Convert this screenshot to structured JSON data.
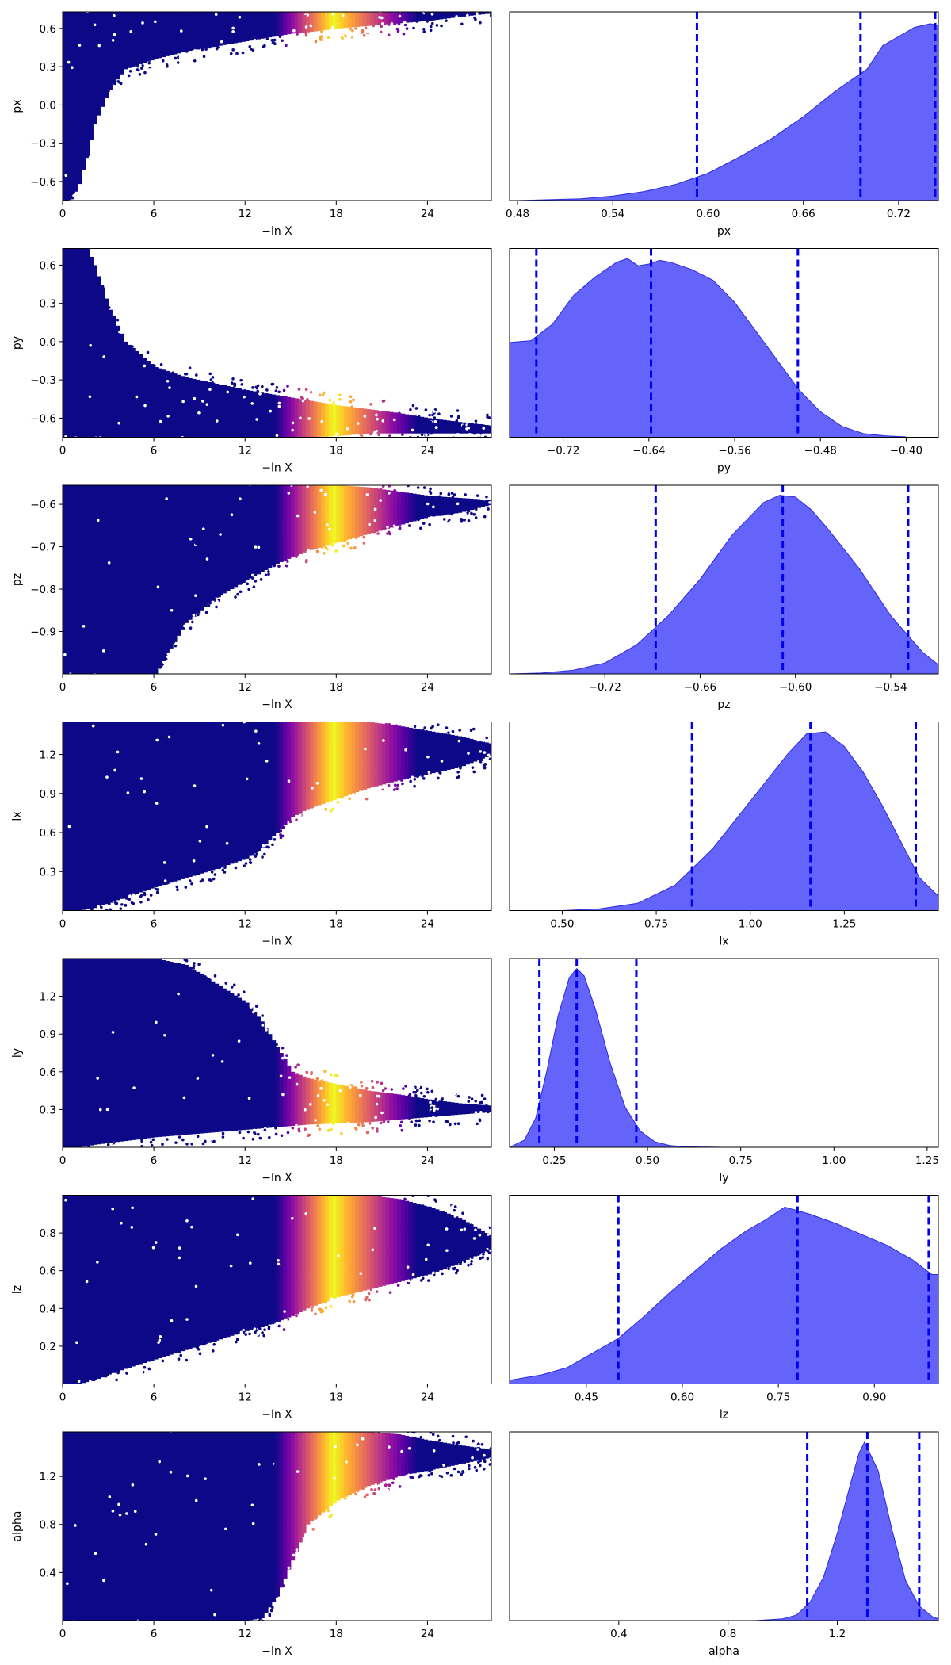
{
  "chart_data": [
    {
      "type": "scatter",
      "param": "px",
      "xlabel": "−ln X",
      "ylabel": "px",
      "xlim": [
        0,
        28.2
      ],
      "ylim": [
        -0.75,
        0.73
      ],
      "xticks": [
        "0",
        "6",
        "12",
        "18",
        "24"
      ],
      "xtick_values": [
        0,
        6,
        12,
        18,
        24
      ],
      "yticks": [
        "0.6",
        "0.3",
        "0.0",
        "−0.3",
        "−0.6"
      ],
      "ytick_values": [
        0.6,
        0.3,
        0.0,
        -0.3,
        -0.6
      ],
      "envelope_x": [
        0,
        0.5,
        1,
        1.5,
        2,
        3,
        4,
        6,
        8,
        10,
        12,
        14,
        15,
        16,
        18,
        20,
        22,
        24,
        26,
        28.2
      ],
      "envelope_lower": [
        -0.75,
        -0.74,
        -0.62,
        -0.4,
        -0.15,
        0.12,
        0.28,
        0.36,
        0.42,
        0.46,
        0.5,
        0.54,
        0.56,
        0.57,
        0.6,
        0.62,
        0.64,
        0.66,
        0.69,
        0.72
      ],
      "envelope_upper": [
        0.73,
        0.73,
        0.73,
        0.73,
        0.73,
        0.73,
        0.73,
        0.73,
        0.73,
        0.73,
        0.73,
        0.73,
        0.73,
        0.73,
        0.73,
        0.73,
        0.73,
        0.73,
        0.73,
        0.73
      ],
      "color_peak": 17.8
    },
    {
      "type": "area",
      "param": "px",
      "xlabel": "px",
      "xlim": [
        0.475,
        0.745
      ],
      "xticks": [
        "0.48",
        "0.54",
        "0.60",
        "0.66",
        "0.72"
      ],
      "xtick_values": [
        0.48,
        0.54,
        0.6,
        0.66,
        0.72
      ],
      "x": [
        0.48,
        0.5,
        0.52,
        0.54,
        0.56,
        0.58,
        0.6,
        0.62,
        0.64,
        0.66,
        0.68,
        0.69,
        0.7,
        0.71,
        0.72,
        0.73,
        0.74,
        0.745
      ],
      "density": [
        0.0,
        0.005,
        0.01,
        0.025,
        0.05,
        0.09,
        0.15,
        0.24,
        0.34,
        0.46,
        0.6,
        0.66,
        0.72,
        0.85,
        0.9,
        0.95,
        0.97,
        0.96
      ],
      "quantiles": [
        0.593,
        0.696,
        0.743
      ]
    },
    {
      "type": "scatter",
      "param": "py",
      "xlabel": "−ln X",
      "ylabel": "py",
      "xlim": [
        0,
        28.2
      ],
      "ylim": [
        -0.75,
        0.73
      ],
      "xticks": [
        "0",
        "6",
        "12",
        "18",
        "24"
      ],
      "xtick_values": [
        0,
        6,
        12,
        18,
        24
      ],
      "yticks": [
        "0.6",
        "0.3",
        "0.0",
        "−0.3",
        "−0.6"
      ],
      "ytick_values": [
        0.6,
        0.3,
        0.0,
        -0.3,
        -0.6
      ],
      "envelope_x": [
        0,
        0.5,
        1,
        1.5,
        2,
        3,
        4,
        6,
        8,
        10,
        12,
        14,
        16,
        18,
        20,
        22,
        24,
        26,
        28.2
      ],
      "envelope_lower": [
        -0.75,
        -0.75,
        -0.75,
        -0.75,
        -0.75,
        -0.75,
        -0.75,
        -0.75,
        -0.75,
        -0.75,
        -0.75,
        -0.75,
        -0.75,
        -0.74,
        -0.72,
        -0.72,
        -0.72,
        -0.72,
        -0.72
      ],
      "envelope_upper": [
        0.73,
        0.73,
        0.73,
        0.73,
        0.6,
        0.25,
        0.0,
        -0.2,
        -0.28,
        -0.33,
        -0.38,
        -0.42,
        -0.46,
        -0.5,
        -0.53,
        -0.56,
        -0.6,
        -0.63,
        -0.66
      ],
      "color_peak": 17.8
    },
    {
      "type": "area",
      "param": "py",
      "xlabel": "py",
      "xlim": [
        -0.77,
        -0.37
      ],
      "xticks": [
        "−0.72",
        "−0.64",
        "−0.56",
        "−0.48",
        "−0.40"
      ],
      "xtick_values": [
        -0.72,
        -0.64,
        -0.56,
        -0.48,
        -0.4
      ],
      "x": [
        -0.77,
        -0.75,
        -0.73,
        -0.71,
        -0.69,
        -0.67,
        -0.66,
        -0.65,
        -0.64,
        -0.63,
        -0.62,
        -0.6,
        -0.58,
        -0.56,
        -0.54,
        -0.52,
        -0.5,
        -0.48,
        -0.46,
        -0.44,
        -0.42,
        -0.4,
        -0.37
      ],
      "density": [
        0.52,
        0.53,
        0.62,
        0.78,
        0.88,
        0.96,
        0.98,
        0.94,
        0.95,
        0.97,
        0.96,
        0.92,
        0.86,
        0.74,
        0.58,
        0.42,
        0.26,
        0.14,
        0.06,
        0.02,
        0.008,
        0.002,
        0.0
      ],
      "quantiles": [
        -0.745,
        -0.638,
        -0.501
      ]
    },
    {
      "type": "scatter",
      "param": "pz",
      "xlabel": "−ln X",
      "ylabel": "pz",
      "xlim": [
        0,
        28.2
      ],
      "ylim": [
        -1.0,
        -0.555
      ],
      "xticks": [
        "0",
        "6",
        "12",
        "18",
        "24"
      ],
      "xtick_values": [
        0,
        6,
        12,
        18,
        24
      ],
      "yticks": [
        "−0.6",
        "−0.7",
        "−0.8",
        "−0.9"
      ],
      "ytick_values": [
        -0.6,
        -0.7,
        -0.8,
        -0.9
      ],
      "envelope_x": [
        0,
        1,
        2,
        3,
        4,
        5,
        6,
        7,
        8,
        10,
        12,
        14,
        16,
        18,
        20,
        22,
        24,
        26,
        28.2
      ],
      "envelope_lower": [
        -1.0,
        -1.0,
        -1.0,
        -1.0,
        -1.0,
        -1.0,
        -1.0,
        -0.94,
        -0.88,
        -0.82,
        -0.78,
        -0.74,
        -0.71,
        -0.69,
        -0.67,
        -0.65,
        -0.63,
        -0.62,
        -0.6
      ],
      "envelope_upper": [
        -0.555,
        -0.555,
        -0.555,
        -0.555,
        -0.555,
        -0.555,
        -0.555,
        -0.555,
        -0.555,
        -0.555,
        -0.555,
        -0.555,
        -0.555,
        -0.555,
        -0.56,
        -0.57,
        -0.58,
        -0.585,
        -0.59
      ],
      "color_peak": 17.8
    },
    {
      "type": "area",
      "param": "pz",
      "xlabel": "pz",
      "xlim": [
        -0.78,
        -0.51
      ],
      "xticks": [
        "−0.72",
        "−0.66",
        "−0.60",
        "−0.54"
      ],
      "xtick_values": [
        -0.72,
        -0.66,
        -0.6,
        -0.54
      ],
      "x": [
        -0.78,
        -0.76,
        -0.74,
        -0.72,
        -0.7,
        -0.68,
        -0.66,
        -0.64,
        -0.62,
        -0.61,
        -0.6,
        -0.59,
        -0.58,
        -0.56,
        -0.54,
        -0.52,
        -0.51
      ],
      "density": [
        0.0,
        0.005,
        0.02,
        0.06,
        0.16,
        0.32,
        0.52,
        0.76,
        0.94,
        0.98,
        0.97,
        0.9,
        0.8,
        0.58,
        0.32,
        0.12,
        0.05
      ],
      "quantiles": [
        -0.688,
        -0.608,
        -0.529
      ]
    },
    {
      "type": "scatter",
      "param": "lx",
      "xlabel": "−ln X",
      "ylabel": "lx",
      "xlim": [
        0,
        28.2
      ],
      "ylim": [
        0.0,
        1.45
      ],
      "xticks": [
        "0",
        "6",
        "12",
        "18",
        "24"
      ],
      "xtick_values": [
        0,
        6,
        12,
        18,
        24
      ],
      "yticks": [
        "1.2",
        "0.9",
        "0.6",
        "0.3"
      ],
      "ytick_values": [
        1.2,
        0.9,
        0.6,
        0.3
      ],
      "envelope_x": [
        0,
        1,
        2,
        4,
        6,
        8,
        10,
        12,
        13,
        14,
        15,
        16,
        18,
        20,
        22,
        24,
        26,
        28.2
      ],
      "envelope_lower": [
        0.0,
        0.0,
        0.02,
        0.1,
        0.18,
        0.25,
        0.32,
        0.4,
        0.48,
        0.6,
        0.72,
        0.78,
        0.86,
        0.94,
        1.0,
        1.05,
        1.1,
        1.2
      ],
      "envelope_upper": [
        1.45,
        1.45,
        1.45,
        1.45,
        1.45,
        1.45,
        1.45,
        1.45,
        1.45,
        1.45,
        1.45,
        1.45,
        1.45,
        1.45,
        1.42,
        1.38,
        1.34,
        1.28
      ],
      "color_peak": 17.8
    },
    {
      "type": "area",
      "param": "lx",
      "xlabel": "lx",
      "xlim": [
        0.36,
        1.5
      ],
      "xticks": [
        "0.50",
        "0.75",
        "1.00",
        "1.25"
      ],
      "xtick_values": [
        0.5,
        0.75,
        1.0,
        1.25
      ],
      "x": [
        0.36,
        0.5,
        0.6,
        0.7,
        0.8,
        0.9,
        1.0,
        1.1,
        1.15,
        1.2,
        1.25,
        1.3,
        1.35,
        1.4,
        1.45,
        1.5
      ],
      "density": [
        0.0,
        0.0,
        0.01,
        0.04,
        0.14,
        0.34,
        0.6,
        0.86,
        0.97,
        0.98,
        0.9,
        0.76,
        0.58,
        0.38,
        0.18,
        0.08
      ],
      "quantiles": [
        0.845,
        1.16,
        1.44
      ]
    },
    {
      "type": "scatter",
      "param": "ly",
      "xlabel": "−ln X",
      "ylabel": "ly",
      "xlim": [
        0,
        28.2
      ],
      "ylim": [
        0.0,
        1.5
      ],
      "xticks": [
        "0",
        "6",
        "12",
        "18",
        "24"
      ],
      "xtick_values": [
        0,
        6,
        12,
        18,
        24
      ],
      "yticks": [
        "1.2",
        "0.9",
        "0.6",
        "0.3"
      ],
      "ytick_values": [
        1.2,
        0.9,
        0.6,
        0.3
      ],
      "envelope_x": [
        0,
        1,
        2,
        4,
        6,
        8,
        10,
        12,
        13,
        14,
        15,
        16,
        18,
        20,
        22,
        24,
        26,
        28.2
      ],
      "envelope_lower": [
        0.0,
        0.0,
        0.02,
        0.05,
        0.08,
        0.1,
        0.12,
        0.14,
        0.15,
        0.16,
        0.17,
        0.18,
        0.19,
        0.2,
        0.22,
        0.24,
        0.26,
        0.28
      ],
      "envelope_upper": [
        1.5,
        1.5,
        1.5,
        1.5,
        1.5,
        1.45,
        1.3,
        1.15,
        1.0,
        0.8,
        0.6,
        0.55,
        0.5,
        0.45,
        0.42,
        0.38,
        0.35,
        0.33
      ],
      "color_peak": 17.8
    },
    {
      "type": "area",
      "param": "ly",
      "xlabel": "ly",
      "xlim": [
        0.13,
        1.28
      ],
      "xticks": [
        "0.25",
        "0.50",
        "0.75",
        "1.00",
        "1.25"
      ],
      "xtick_values": [
        0.25,
        0.5,
        0.75,
        1.0,
        1.25
      ],
      "x": [
        0.13,
        0.17,
        0.2,
        0.23,
        0.26,
        0.29,
        0.31,
        0.33,
        0.36,
        0.4,
        0.44,
        0.48,
        0.52,
        0.56,
        0.6,
        0.7,
        1.28
      ],
      "density": [
        0.0,
        0.04,
        0.16,
        0.42,
        0.72,
        0.93,
        0.98,
        0.94,
        0.76,
        0.46,
        0.22,
        0.09,
        0.03,
        0.01,
        0.003,
        0.0,
        0.0
      ],
      "quantiles": [
        0.21,
        0.31,
        0.47
      ]
    },
    {
      "type": "scatter",
      "param": "lz",
      "xlabel": "−ln X",
      "ylabel": "lz",
      "xlim": [
        0,
        28.2
      ],
      "ylim": [
        0.0,
        1.0
      ],
      "xticks": [
        "0",
        "6",
        "12",
        "18",
        "24"
      ],
      "xtick_values": [
        0,
        6,
        12,
        18,
        24
      ],
      "yticks": [
        "0.8",
        "0.6",
        "0.4",
        "0.2"
      ],
      "ytick_values": [
        0.8,
        0.6,
        0.4,
        0.2
      ],
      "envelope_x": [
        0,
        1,
        2,
        4,
        6,
        8,
        10,
        12,
        13,
        14,
        15,
        16,
        17,
        18,
        20,
        22,
        24,
        26,
        28.2
      ],
      "envelope_lower": [
        0.0,
        0.0,
        0.02,
        0.08,
        0.13,
        0.18,
        0.23,
        0.28,
        0.3,
        0.33,
        0.36,
        0.4,
        0.43,
        0.46,
        0.5,
        0.54,
        0.58,
        0.64,
        0.72
      ],
      "envelope_upper": [
        1.0,
        1.0,
        1.0,
        1.0,
        1.0,
        1.0,
        1.0,
        1.0,
        1.0,
        1.0,
        1.0,
        1.0,
        1.0,
        1.0,
        1.0,
        0.98,
        0.94,
        0.88,
        0.78
      ],
      "color_peak": 17.8
    },
    {
      "type": "area",
      "param": "lz",
      "xlabel": "lz",
      "xlim": [
        0.33,
        1.0
      ],
      "xticks": [
        "0.45",
        "0.60",
        "0.75",
        "0.90"
      ],
      "xtick_values": [
        0.45,
        0.6,
        0.75,
        0.9
      ],
      "x": [
        0.33,
        0.38,
        0.42,
        0.46,
        0.5,
        0.54,
        0.58,
        0.62,
        0.66,
        0.7,
        0.73,
        0.76,
        0.78,
        0.8,
        0.84,
        0.88,
        0.92,
        0.96,
        0.99,
        1.0
      ],
      "density": [
        0.02,
        0.05,
        0.09,
        0.17,
        0.25,
        0.37,
        0.5,
        0.62,
        0.74,
        0.84,
        0.9,
        0.97,
        0.95,
        0.93,
        0.88,
        0.82,
        0.76,
        0.68,
        0.6,
        0.6
      ],
      "quantiles": [
        0.5,
        0.78,
        0.985
      ]
    },
    {
      "type": "scatter",
      "param": "alpha",
      "xlabel": "−ln X",
      "ylabel": "alpha",
      "xlim": [
        0,
        28.2
      ],
      "ylim": [
        0.0,
        1.57
      ],
      "xticks": [
        "0",
        "6",
        "12",
        "18",
        "24"
      ],
      "xtick_values": [
        0,
        6,
        12,
        18,
        24
      ],
      "yticks": [
        "1.2",
        "0.8",
        "0.4"
      ],
      "ytick_values": [
        1.2,
        0.8,
        0.4
      ],
      "envelope_x": [
        0,
        1,
        2,
        4,
        6,
        8,
        10,
        12,
        13,
        14,
        15,
        16,
        18,
        20,
        22,
        24,
        26,
        28.2
      ],
      "envelope_lower": [
        0.0,
        0.0,
        0.0,
        0.0,
        0.0,
        0.0,
        0.0,
        0.0,
        0.02,
        0.2,
        0.5,
        0.8,
        1.0,
        1.12,
        1.2,
        1.25,
        1.3,
        1.36
      ],
      "envelope_upper": [
        1.57,
        1.57,
        1.57,
        1.57,
        1.57,
        1.57,
        1.57,
        1.57,
        1.57,
        1.57,
        1.57,
        1.57,
        1.57,
        1.57,
        1.55,
        1.5,
        1.46,
        1.42
      ],
      "color_peak": 17.8
    },
    {
      "type": "area",
      "param": "alpha",
      "xlabel": "alpha",
      "xlim": [
        0.0,
        1.57
      ],
      "xticks": [
        "0.4",
        "0.8",
        "1.2"
      ],
      "xtick_values": [
        0.4,
        0.8,
        1.2
      ],
      "x": [
        0.0,
        0.9,
        1.0,
        1.05,
        1.1,
        1.15,
        1.2,
        1.25,
        1.28,
        1.3,
        1.35,
        1.4,
        1.45,
        1.5,
        1.55,
        1.57
      ],
      "density": [
        0.0,
        0.0,
        0.01,
        0.03,
        0.1,
        0.24,
        0.48,
        0.76,
        0.92,
        0.98,
        0.82,
        0.5,
        0.22,
        0.08,
        0.02,
        0.01
      ],
      "quantiles": [
        1.09,
        1.31,
        1.5
      ]
    }
  ]
}
